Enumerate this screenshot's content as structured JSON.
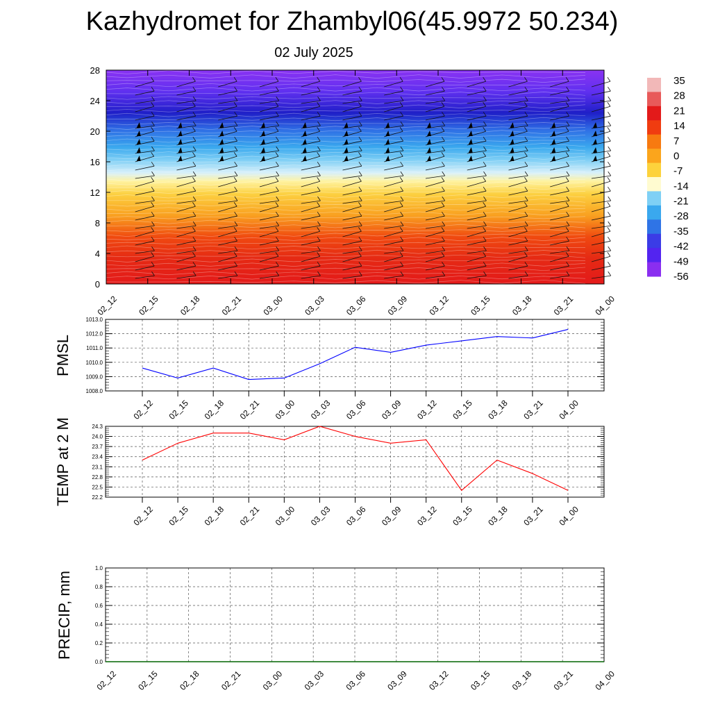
{
  "title": "Kazhydromet for Zhambyl06(45.9972 50.234)",
  "subtitle": "02 July 2025",
  "time_labels_top": [
    "02_12",
    "02_15",
    "02_18",
    "02_21",
    "03_00",
    "03_03",
    "03_06",
    "03_09",
    "03_12",
    "03_15",
    "03_18",
    "03_21",
    "04_00"
  ],
  "time_labels_line": [
    "02_12",
    "02_15",
    "02_18",
    "02_21",
    "03_00",
    "03_03",
    "03_06",
    "03_09",
    "03_12",
    "03_15",
    "03_18",
    "03_21",
    "04_00"
  ],
  "time_labels_precip": [
    "02_12",
    "02_15",
    "02_18",
    "02_21",
    "03_00",
    "03_03",
    "03_06",
    "03_09",
    "03_12",
    "03_15",
    "03_18",
    "03_21",
    "04_00"
  ],
  "colorbar": {
    "labels": [
      "35",
      "28",
      "21",
      "14",
      "7",
      "0",
      "-7",
      "-14",
      "-21",
      "-28",
      "-35",
      "-42",
      "-49",
      "-56"
    ],
    "colors": [
      "#f2b8b8",
      "#e85a5a",
      "#e31a1a",
      "#f03c10",
      "#f77a10",
      "#fba51c",
      "#fdd23c",
      "#fffbd0",
      "#7fd0f5",
      "#3aa8ee",
      "#2f74e6",
      "#3b3ce6",
      "#5324f0",
      "#8a2ef0"
    ]
  },
  "chart_data": [
    {
      "type": "heatmap",
      "description_type": "vertical temperature cross-section with wind barbs",
      "y_ticks": [
        "0",
        "4",
        "8",
        "12",
        "16",
        "20",
        "24",
        "28"
      ],
      "ylim": [
        0,
        28
      ],
      "x": [
        "02_12",
        "02_15",
        "02_18",
        "02_21",
        "03_00",
        "03_03",
        "03_06",
        "03_09",
        "03_12",
        "03_15",
        "03_18",
        "03_21",
        "04_00"
      ],
      "zlim": [
        -56,
        35
      ]
    },
    {
      "type": "line",
      "ylabel": "PMSL",
      "y_ticks": [
        "1008.0",
        "1009.0",
        "1010.0",
        "1011.0",
        "1012.0",
        "1013.0"
      ],
      "ylim": [
        1008,
        1013
      ],
      "x": [
        "02_12",
        "02_15",
        "02_18",
        "02_21",
        "03_00",
        "03_03",
        "03_06",
        "03_09",
        "03_12",
        "03_15",
        "03_18",
        "03_21",
        "04_00"
      ],
      "series": [
        {
          "values": [
            1009.6,
            1008.9,
            1009.6,
            1008.8,
            1008.9,
            1009.9,
            1011.05,
            1010.7,
            1011.2,
            1011.5,
            1011.8,
            1011.7,
            1012.3
          ]
        }
      ],
      "color": "#0000ff",
      "grid": true
    },
    {
      "type": "line",
      "ylabel": "TEMP at 2 M",
      "y_ticks": [
        "22.2",
        "22.5",
        "22.8",
        "23.1",
        "23.4",
        "23.7",
        "24.0",
        "24.3"
      ],
      "ylim": [
        22.2,
        24.3
      ],
      "x": [
        "02_12",
        "02_15",
        "02_18",
        "02_21",
        "03_00",
        "03_03",
        "03_06",
        "03_09",
        "03_12",
        "03_15",
        "03_18",
        "03_21",
        "04_00"
      ],
      "series": [
        {
          "values": [
            23.3,
            23.8,
            24.1,
            24.1,
            23.9,
            24.3,
            24.0,
            23.8,
            23.9,
            22.4,
            23.3,
            22.9,
            22.4
          ]
        }
      ],
      "color": "#ff0000",
      "grid": true
    },
    {
      "type": "line",
      "ylabel": "PRECIP, mm",
      "y_ticks": [
        "0.0",
        "0.2",
        "0.4",
        "0.6",
        "0.8",
        "1.0"
      ],
      "ylim": [
        0,
        1
      ],
      "x": [
        "02_12",
        "02_15",
        "02_18",
        "02_21",
        "03_00",
        "03_03",
        "03_06",
        "03_09",
        "03_12",
        "03_15",
        "03_18",
        "03_21",
        "04_00"
      ],
      "series": [
        {
          "values": [
            0,
            0,
            0,
            0,
            0,
            0,
            0,
            0,
            0,
            0,
            0,
            0,
            0
          ]
        }
      ],
      "color": "#006400",
      "grid": true
    }
  ]
}
